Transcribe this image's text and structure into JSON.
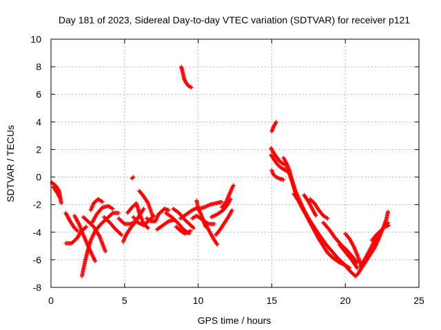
{
  "chart_data": {
    "type": "scatter",
    "title": "Day 181 of 2023, Sidereal Day-to-day VTEC variation (SDTVAR) for receiver p121",
    "xlabel": "GPS time / hours",
    "ylabel": "SDTVAR / TECUs",
    "xlim": [
      0,
      25
    ],
    "ylim": [
      -8,
      10
    ],
    "xticks": [
      0,
      5,
      10,
      15,
      20,
      25
    ],
    "yticks": [
      -8,
      -6,
      -4,
      -2,
      0,
      2,
      4,
      6,
      8,
      10
    ],
    "grid": true,
    "marker": "+",
    "color": "#ff0000",
    "series": [
      {
        "name": "SDTVAR",
        "tracks": [
          [
            [
              0.05,
              -0.4
            ],
            [
              0.3,
              -0.6
            ],
            [
              0.55,
              -1.0
            ],
            [
              0.7,
              -1.9
            ]
          ],
          [
            [
              0.15,
              -0.7
            ],
            [
              0.4,
              -1.1
            ],
            [
              0.6,
              -1.5
            ]
          ],
          [
            [
              1.0,
              -2.6
            ],
            [
              1.3,
              -3.2
            ],
            [
              1.6,
              -3.7
            ],
            [
              1.8,
              -3.9
            ]
          ],
          [
            [
              1.0,
              -4.8
            ],
            [
              1.4,
              -4.8
            ],
            [
              1.8,
              -4.4
            ],
            [
              2.0,
              -4.0
            ],
            [
              2.4,
              -3.6
            ]
          ],
          [
            [
              1.6,
              -2.8
            ],
            [
              1.9,
              -3.4
            ],
            [
              2.2,
              -4.2
            ],
            [
              2.6,
              -5.2
            ],
            [
              3.0,
              -6.1
            ]
          ],
          [
            [
              2.2,
              -2.9
            ],
            [
              2.5,
              -3.2
            ],
            [
              2.9,
              -3.6
            ],
            [
              3.3,
              -4.3
            ],
            [
              3.7,
              -5.4
            ]
          ],
          [
            [
              2.1,
              -7.2
            ],
            [
              2.3,
              -6.2
            ],
            [
              2.5,
              -5.3
            ],
            [
              2.7,
              -4.6
            ],
            [
              3.0,
              -3.9
            ],
            [
              3.4,
              -3.4
            ],
            [
              3.8,
              -3.0
            ],
            [
              4.2,
              -2.6
            ],
            [
              4.6,
              -2.6
            ]
          ],
          [
            [
              2.8,
              -3.3
            ],
            [
              3.1,
              -2.7
            ],
            [
              3.5,
              -2.2
            ],
            [
              3.9,
              -2.1
            ],
            [
              4.2,
              -2.3
            ]
          ],
          [
            [
              2.7,
              -2.4
            ],
            [
              2.9,
              -1.9
            ],
            [
              3.2,
              -1.6
            ],
            [
              3.5,
              -1.8
            ]
          ],
          [
            [
              3.6,
              -2.9
            ],
            [
              4.0,
              -3.3
            ],
            [
              4.4,
              -3.8
            ],
            [
              4.8,
              -4.2
            ]
          ],
          [
            [
              4.6,
              -3.0
            ],
            [
              5.0,
              -3.4
            ],
            [
              5.4,
              -3.4
            ],
            [
              5.8,
              -3.2
            ]
          ],
          [
            [
              4.9,
              -4.7
            ],
            [
              5.1,
              -4.2
            ],
            [
              5.4,
              -3.7
            ],
            [
              5.7,
              -3.3
            ],
            [
              6.0,
              -2.8
            ],
            [
              6.3,
              -2.3
            ]
          ],
          [
            [
              5.2,
              -2.6
            ],
            [
              5.5,
              -2.2
            ],
            [
              5.8,
              -1.9
            ],
            [
              6.0,
              -2.6
            ],
            [
              6.3,
              -3.4
            ],
            [
              6.6,
              -3.7
            ]
          ],
          [
            [
              5.5,
              -0.1
            ],
            [
              5.6,
              0.0
            ]
          ],
          [
            [
              5.6,
              -2.9
            ],
            [
              5.9,
              -3.3
            ],
            [
              6.3,
              -3.5
            ],
            [
              6.7,
              -3.1
            ],
            [
              7.0,
              -2.8
            ]
          ],
          [
            [
              6.0,
              -1.0
            ],
            [
              6.3,
              -1.4
            ],
            [
              6.6,
              -1.9
            ],
            [
              6.9,
              -2.8
            ]
          ],
          [
            [
              6.5,
              -3.0
            ],
            [
              6.8,
              -3.2
            ],
            [
              7.1,
              -3.2
            ],
            [
              7.3,
              -2.7
            ],
            [
              7.7,
              -2.3
            ],
            [
              8.0,
              -2.4
            ]
          ],
          [
            [
              7.2,
              -3.8
            ],
            [
              7.6,
              -3.5
            ],
            [
              8.0,
              -3.2
            ],
            [
              8.4,
              -3.1
            ]
          ],
          [
            [
              7.8,
              -2.6
            ],
            [
              8.2,
              -2.9
            ],
            [
              8.6,
              -3.3
            ],
            [
              9.0,
              -3.8
            ],
            [
              9.4,
              -4.1
            ]
          ],
          [
            [
              8.3,
              -2.3
            ],
            [
              8.7,
              -2.6
            ],
            [
              9.0,
              -3.0
            ],
            [
              9.4,
              -3.4
            ],
            [
              9.7,
              -3.7
            ]
          ],
          [
            [
              8.5,
              -3.6
            ],
            [
              8.8,
              -3.9
            ],
            [
              9.1,
              -4.1
            ],
            [
              9.5,
              -3.9
            ]
          ],
          [
            [
              8.8,
              -3.0
            ],
            [
              9.2,
              -2.7
            ],
            [
              9.6,
              -2.4
            ],
            [
              10.0,
              -2.2
            ]
          ],
          [
            [
              8.85,
              8.0
            ],
            [
              8.95,
              7.6
            ],
            [
              9.05,
              7.1
            ],
            [
              9.2,
              6.8
            ],
            [
              9.35,
              6.6
            ],
            [
              9.55,
              6.5
            ]
          ],
          [
            [
              9.6,
              -3.0
            ],
            [
              9.9,
              -2.8
            ],
            [
              10.3,
              -3.1
            ],
            [
              10.7,
              -3.4
            ],
            [
              11.1,
              -3.4
            ]
          ],
          [
            [
              9.9,
              -1.7
            ],
            [
              10.0,
              -2.3
            ],
            [
              10.2,
              -2.7
            ],
            [
              10.4,
              -3.3
            ],
            [
              10.5,
              -3.6
            ]
          ],
          [
            [
              10.0,
              -2.3
            ],
            [
              10.4,
              -2.2
            ],
            [
              10.8,
              -2.0
            ],
            [
              11.2,
              -1.9
            ],
            [
              11.6,
              -1.8
            ]
          ],
          [
            [
              10.4,
              -3.3
            ],
            [
              10.7,
              -3.8
            ],
            [
              11.0,
              -4.4
            ],
            [
              11.3,
              -4.9
            ]
          ],
          [
            [
              10.9,
              -2.9
            ],
            [
              11.3,
              -2.7
            ],
            [
              11.7,
              -2.4
            ],
            [
              12.0,
              -2.0
            ],
            [
              12.2,
              -1.6
            ]
          ],
          [
            [
              11.2,
              -4.2
            ],
            [
              11.5,
              -3.8
            ],
            [
              11.8,
              -3.3
            ],
            [
              12.1,
              -2.8
            ],
            [
              12.3,
              -2.4
            ]
          ],
          [
            [
              11.6,
              -2.2
            ],
            [
              11.9,
              -1.8
            ],
            [
              12.1,
              -1.3
            ],
            [
              12.3,
              -0.8
            ],
            [
              12.4,
              -0.6
            ]
          ],
          [
            [
              15.0,
              3.3
            ],
            [
              15.1,
              3.6
            ],
            [
              15.2,
              3.8
            ],
            [
              15.3,
              4.0
            ]
          ],
          [
            [
              14.95,
              2.1
            ],
            [
              15.1,
              1.8
            ],
            [
              15.3,
              1.5
            ],
            [
              15.5,
              1.2
            ],
            [
              15.7,
              1.0
            ],
            [
              15.9,
              0.9
            ]
          ],
          [
            [
              14.95,
              1.6
            ],
            [
              15.2,
              1.2
            ],
            [
              15.4,
              0.9
            ],
            [
              15.6,
              0.7
            ],
            [
              15.9,
              0.5
            ],
            [
              16.1,
              0.4
            ]
          ],
          [
            [
              15.0,
              0.5
            ],
            [
              15.1,
              0.2
            ],
            [
              15.3,
              0.0
            ],
            [
              15.5,
              -0.1
            ],
            [
              15.8,
              -0.2
            ]
          ],
          [
            [
              15.8,
              1.4
            ],
            [
              16.0,
              1.0
            ],
            [
              16.2,
              0.5
            ],
            [
              16.4,
              -0.3
            ],
            [
              16.6,
              -1.0
            ],
            [
              16.9,
              -1.7
            ],
            [
              17.2,
              -2.4
            ],
            [
              17.5,
              -3.0
            ],
            [
              17.8,
              -3.5
            ],
            [
              18.1,
              -4.0
            ],
            [
              18.3,
              -4.6
            ]
          ],
          [
            [
              16.0,
              0.7
            ],
            [
              16.2,
              0.2
            ],
            [
              16.4,
              -0.4
            ],
            [
              16.6,
              -1.1
            ],
            [
              16.9,
              -1.9
            ],
            [
              17.2,
              -2.5
            ],
            [
              17.6,
              -3.3
            ],
            [
              17.9,
              -3.9
            ],
            [
              18.2,
              -4.5
            ],
            [
              18.5,
              -5.0
            ],
            [
              18.8,
              -5.5
            ],
            [
              19.2,
              -5.9
            ],
            [
              19.6,
              -6.2
            ],
            [
              20.0,
              -6.4
            ],
            [
              20.3,
              -6.6
            ]
          ],
          [
            [
              16.5,
              -1.2
            ],
            [
              16.8,
              -1.7
            ],
            [
              17.1,
              -2.3
            ],
            [
              17.5,
              -3.0
            ],
            [
              17.9,
              -3.7
            ],
            [
              18.3,
              -4.3
            ],
            [
              18.7,
              -4.9
            ],
            [
              19.1,
              -5.4
            ],
            [
              19.5,
              -5.9
            ],
            [
              19.9,
              -6.3
            ],
            [
              20.3,
              -6.8
            ],
            [
              20.7,
              -7.2
            ]
          ],
          [
            [
              17.2,
              -1.3
            ],
            [
              17.5,
              -1.8
            ],
            [
              17.8,
              -2.4
            ],
            [
              18.0,
              -2.8
            ]
          ],
          [
            [
              17.6,
              -1.6
            ],
            [
              17.9,
              -1.9
            ],
            [
              18.2,
              -2.4
            ],
            [
              18.5,
              -2.8
            ],
            [
              18.8,
              -3.0
            ]
          ],
          [
            [
              18.5,
              -3.3
            ],
            [
              18.9,
              -3.8
            ],
            [
              19.3,
              -4.4
            ],
            [
              19.7,
              -4.9
            ],
            [
              20.1,
              -5.3
            ],
            [
              20.5,
              -5.8
            ],
            [
              20.8,
              -6.2
            ]
          ],
          [
            [
              19.6,
              -4.9
            ],
            [
              19.9,
              -5.3
            ],
            [
              20.2,
              -5.7
            ],
            [
              20.5,
              -6.1
            ],
            [
              20.8,
              -6.6
            ]
          ],
          [
            [
              20.0,
              -4.1
            ],
            [
              20.3,
              -4.5
            ],
            [
              20.6,
              -5.1
            ],
            [
              20.9,
              -5.9
            ],
            [
              21.1,
              -6.5
            ]
          ],
          [
            [
              20.8,
              -7.1
            ],
            [
              21.1,
              -6.6
            ],
            [
              21.4,
              -6.1
            ],
            [
              21.7,
              -5.6
            ],
            [
              22.0,
              -5.1
            ],
            [
              22.3,
              -4.4
            ],
            [
              22.6,
              -3.6
            ],
            [
              22.8,
              -3.0
            ],
            [
              22.9,
              -2.5
            ]
          ],
          [
            [
              21.0,
              -6.5
            ],
            [
              21.3,
              -6.0
            ],
            [
              21.6,
              -5.4
            ],
            [
              21.9,
              -4.8
            ],
            [
              22.2,
              -4.3
            ],
            [
              22.5,
              -3.8
            ],
            [
              22.9,
              -3.3
            ]
          ],
          [
            [
              21.8,
              -4.6
            ],
            [
              22.1,
              -4.2
            ],
            [
              22.4,
              -3.9
            ],
            [
              22.7,
              -3.6
            ],
            [
              22.95,
              -3.5
            ]
          ]
        ]
      }
    ]
  }
}
